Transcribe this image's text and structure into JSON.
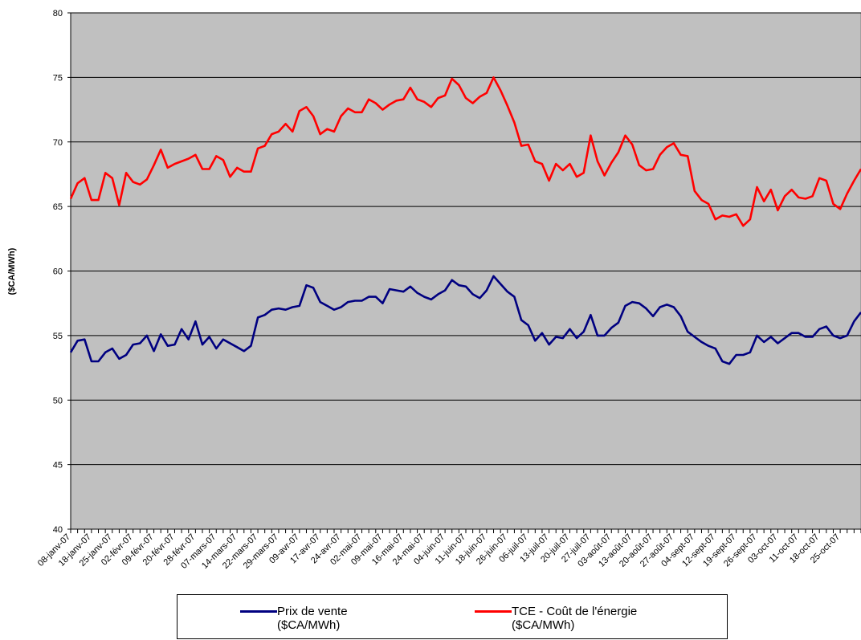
{
  "chart_data": {
    "type": "line",
    "y_label": "($CA/MWh)",
    "ylim": [
      40,
      80
    ],
    "yticks": [
      40,
      45,
      50,
      55,
      60,
      65,
      70,
      75,
      80
    ],
    "grid": true,
    "categories": [
      "08-janv-07",
      null,
      null,
      "18-janv-07",
      null,
      null,
      "25-janv-07",
      null,
      null,
      "02-févr-07",
      null,
      null,
      "09-févr-07",
      null,
      null,
      "20-févr-07",
      null,
      null,
      "28-févr-07",
      null,
      null,
      "07-mars-07",
      null,
      null,
      "14-mars-07",
      null,
      null,
      "22-mars-07",
      null,
      null,
      "29-mars-07",
      null,
      null,
      "09-avr-07",
      null,
      null,
      "17-avr-07",
      null,
      null,
      "24-avr-07",
      null,
      null,
      "02-mai-07",
      null,
      null,
      "09-mai-07",
      null,
      null,
      "16-mai-07",
      null,
      null,
      "24-mai-07",
      null,
      null,
      "04-juin-07",
      null,
      null,
      "11-juin-07",
      null,
      null,
      "18-juin-07",
      null,
      null,
      "26-juin-07",
      null,
      null,
      "06-juil-07",
      null,
      null,
      "13-juil-07",
      null,
      null,
      "20-juil-07",
      null,
      null,
      "27-juil-07",
      null,
      null,
      "03-août-07",
      null,
      null,
      "13-août-07",
      null,
      null,
      "20-août-07",
      null,
      null,
      "27-août-07",
      null,
      null,
      "04-sept-07",
      null,
      null,
      "12-sept-07",
      null,
      null,
      "19-sept-07",
      null,
      null,
      "26-sept-07",
      null,
      null,
      "03-oct-07",
      null,
      null,
      "11-oct-07",
      null,
      null,
      "18-oct-07",
      null,
      null,
      "25-oct-07",
      null,
      null,
      null
    ],
    "series": [
      {
        "name": "Prix de vente ($CA/MWh)",
        "color": "#000080",
        "values": [
          53.7,
          54.6,
          54.7,
          53.0,
          53.0,
          53.7,
          54.0,
          53.2,
          53.5,
          54.3,
          54.4,
          55.0,
          53.8,
          55.1,
          54.2,
          54.3,
          55.5,
          54.7,
          56.1,
          54.3,
          54.9,
          54.0,
          54.7,
          54.4,
          54.1,
          53.8,
          54.2,
          56.4,
          56.6,
          57.0,
          57.1,
          57.0,
          57.2,
          57.3,
          58.9,
          58.7,
          57.6,
          57.3,
          57.0,
          57.2,
          57.6,
          57.7,
          57.7,
          58.0,
          58.0,
          57.5,
          58.6,
          58.5,
          58.4,
          58.8,
          58.3,
          58.0,
          57.8,
          58.2,
          58.5,
          59.3,
          58.9,
          58.8,
          58.2,
          57.9,
          58.5,
          59.6,
          59.0,
          58.4,
          58.0,
          56.2,
          55.8,
          54.6,
          55.2,
          54.3,
          54.9,
          54.8,
          55.5,
          54.8,
          55.3,
          56.6,
          55.0,
          55.0,
          55.6,
          56.0,
          57.3,
          57.6,
          57.5,
          57.1,
          56.5,
          57.2,
          57.4,
          57.2,
          56.5,
          55.3,
          54.9,
          54.5,
          54.2,
          54.0,
          53.0,
          52.8,
          53.5,
          53.5,
          53.7,
          55.0,
          54.5,
          54.9,
          54.4,
          54.8,
          55.2,
          55.2,
          54.9,
          54.9,
          55.5,
          55.7,
          55.0,
          54.8,
          55.0,
          56.1,
          56.8
        ]
      },
      {
        "name": "TCE - Coût de l'énergie ($CA/MWh)",
        "color": "#ff0000",
        "values": [
          65.6,
          66.8,
          67.2,
          65.5,
          65.5,
          67.6,
          67.2,
          65.1,
          67.6,
          66.9,
          66.7,
          67.1,
          68.2,
          69.4,
          68.0,
          68.3,
          68.5,
          68.7,
          69.0,
          67.9,
          67.9,
          68.9,
          68.6,
          67.3,
          68.0,
          67.7,
          67.7,
          69.5,
          69.7,
          70.6,
          70.8,
          71.4,
          70.8,
          72.4,
          72.7,
          72.0,
          70.6,
          71.0,
          70.8,
          72.0,
          72.6,
          72.3,
          72.3,
          73.3,
          73.0,
          72.5,
          72.9,
          73.2,
          73.3,
          74.2,
          73.3,
          73.1,
          72.7,
          73.4,
          73.6,
          74.9,
          74.4,
          73.4,
          73.0,
          73.5,
          73.8,
          75.0,
          74.0,
          72.8,
          71.5,
          69.7,
          69.8,
          68.5,
          68.3,
          67.0,
          68.3,
          67.8,
          68.3,
          67.3,
          67.6,
          70.5,
          68.5,
          67.4,
          68.4,
          69.2,
          70.5,
          69.8,
          68.2,
          67.8,
          67.9,
          69.0,
          69.6,
          69.9,
          69.0,
          68.9,
          66.2,
          65.5,
          65.2,
          64.0,
          64.3,
          64.2,
          64.4,
          63.5,
          64.0,
          66.5,
          65.4,
          66.3,
          64.7,
          65.8,
          66.3,
          65.7,
          65.6,
          65.8,
          67.2,
          67.0,
          65.2,
          64.8,
          66.0,
          67.0,
          67.9
        ]
      }
    ]
  }
}
